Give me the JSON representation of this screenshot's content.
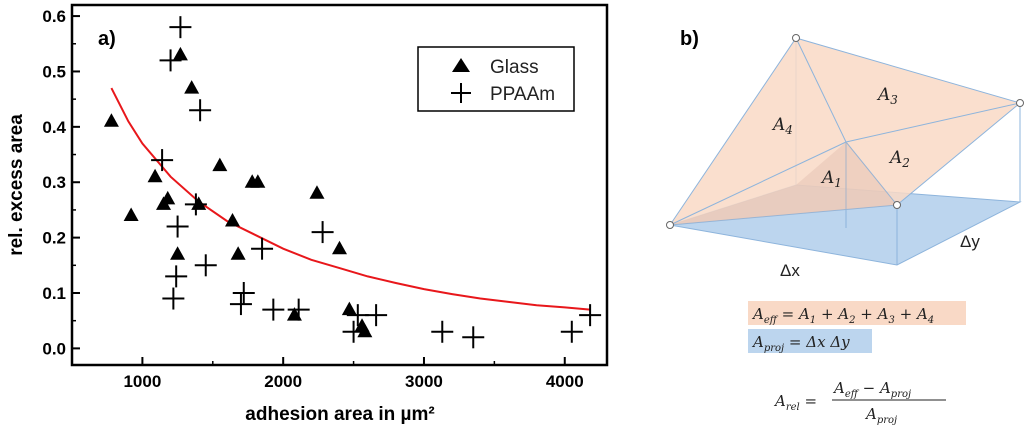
{
  "chart_data": {
    "type": "scatter",
    "panel_label": "a)",
    "xlabel": "adhesion area in µm²",
    "ylabel": "rel. excess area",
    "xlim": [
      500,
      4300
    ],
    "ylim": [
      -0.03,
      0.62
    ],
    "xticks": [
      1000,
      2000,
      3000,
      4000
    ],
    "xtick_labels": [
      "1000",
      "2000",
      "3000",
      "4000"
    ],
    "yticks": [
      0.0,
      0.1,
      0.2,
      0.3,
      0.4,
      0.5,
      0.6
    ],
    "ytick_labels": [
      "0.0",
      "0.1",
      "0.2",
      "0.3",
      "0.4",
      "0.5",
      "0.6"
    ],
    "legend_position": "top-right",
    "series": [
      {
        "name": "Glass",
        "marker": "triangle",
        "points": [
          [
            780,
            0.41
          ],
          [
            920,
            0.24
          ],
          [
            1090,
            0.31
          ],
          [
            1150,
            0.26
          ],
          [
            1180,
            0.27
          ],
          [
            1250,
            0.17
          ],
          [
            1270,
            0.53
          ],
          [
            1350,
            0.47
          ],
          [
            1400,
            0.26
          ],
          [
            1550,
            0.33
          ],
          [
            1640,
            0.23
          ],
          [
            1680,
            0.17
          ],
          [
            1780,
            0.3
          ],
          [
            1820,
            0.3
          ],
          [
            2080,
            0.06
          ],
          [
            2240,
            0.28
          ],
          [
            2400,
            0.18
          ],
          [
            2470,
            0.07
          ],
          [
            2560,
            0.04
          ],
          [
            2580,
            0.03
          ]
        ]
      },
      {
        "name": "PPAAm",
        "marker": "plus",
        "points": [
          [
            1140,
            0.34
          ],
          [
            1200,
            0.52
          ],
          [
            1220,
            0.09
          ],
          [
            1240,
            0.13
          ],
          [
            1250,
            0.22
          ],
          [
            1270,
            0.58
          ],
          [
            1380,
            0.26
          ],
          [
            1410,
            0.43
          ],
          [
            1450,
            0.15
          ],
          [
            1700,
            0.08
          ],
          [
            1720,
            0.1
          ],
          [
            1850,
            0.18
          ],
          [
            1930,
            0.07
          ],
          [
            2110,
            0.07
          ],
          [
            2280,
            0.21
          ],
          [
            2500,
            0.03
          ],
          [
            2530,
            0.06
          ],
          [
            2660,
            0.06
          ],
          [
            3130,
            0.03
          ],
          [
            3350,
            0.02
          ],
          [
            4050,
            0.03
          ],
          [
            4180,
            0.06
          ]
        ]
      }
    ],
    "fit": {
      "name": "fit",
      "color": "#e8171b",
      "points": [
        [
          780,
          0.47
        ],
        [
          900,
          0.41
        ],
        [
          1000,
          0.37
        ],
        [
          1200,
          0.31
        ],
        [
          1400,
          0.265
        ],
        [
          1600,
          0.23
        ],
        [
          1800,
          0.205
        ],
        [
          2000,
          0.18
        ],
        [
          2200,
          0.16
        ],
        [
          2400,
          0.145
        ],
        [
          2600,
          0.13
        ],
        [
          2800,
          0.118
        ],
        [
          3000,
          0.107
        ],
        [
          3200,
          0.098
        ],
        [
          3400,
          0.09
        ],
        [
          3600,
          0.084
        ],
        [
          3800,
          0.078
        ],
        [
          4000,
          0.074
        ],
        [
          4180,
          0.07
        ]
      ]
    }
  },
  "diagram": {
    "panel_label": "b)",
    "area_labels": [
      "A4",
      "A3",
      "A2",
      "A1"
    ],
    "dx_label": "Δx",
    "dy_label": "Δy",
    "eq_eff": "A_eff = A_1 + A_2 + A_3 + A_4",
    "eq_proj": "A_proj = ΔxΔy",
    "eq_rel": "A_rel = (A_eff − A_proj) / A_proj"
  },
  "colors": {
    "surface_orange": "#f9d9c6",
    "base_blue": "#bcd5ee",
    "edge_blue": "#8db4dc",
    "fit_red": "#e8171b"
  }
}
